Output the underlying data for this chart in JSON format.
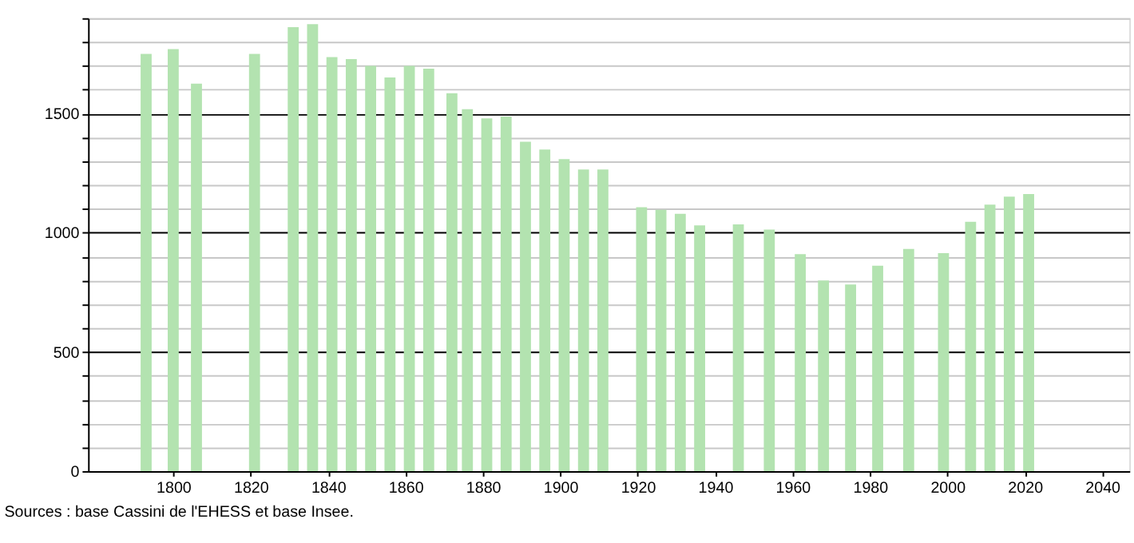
{
  "chart_data": {
    "type": "bar",
    "x": [
      1793,
      1800,
      1806,
      1821,
      1831,
      1836,
      1841,
      1846,
      1851,
      1856,
      1861,
      1866,
      1872,
      1876,
      1881,
      1886,
      1891,
      1896,
      1901,
      1906,
      1911,
      1921,
      1926,
      1931,
      1936,
      1946,
      1954,
      1962,
      1968,
      1975,
      1982,
      1990,
      1999,
      2006,
      2011,
      2016,
      2021
    ],
    "series": [
      {
        "color": "#b3e3b0",
        "values": [
          1750,
          1770,
          1625,
          1750,
          1862,
          1875,
          1737,
          1728,
          1700,
          1651,
          1700,
          1688,
          1585,
          1518,
          1480,
          1487,
          1382,
          1349,
          1309,
          1265,
          1265,
          1107,
          1096,
          1079,
          1031,
          1035,
          1013,
          910,
          800,
          783,
          862,
          932,
          914,
          1046,
          1118,
          1151,
          1162
        ]
      }
    ],
    "xlim": [
      1778,
      2047
    ],
    "xticks": [
      1800,
      1820,
      1840,
      1860,
      1880,
      1900,
      1920,
      1940,
      1960,
      1980,
      2000,
      2020,
      2040
    ],
    "ylim": [
      0,
      1900
    ],
    "yticks": [
      0,
      {
        "value": 100,
        "label": null
      },
      {
        "value": 200,
        "label": null
      },
      {
        "value": 300,
        "label": null
      },
      {
        "value": 400,
        "label": null
      },
      500,
      {
        "value": 600,
        "label": null
      },
      {
        "value": 700,
        "label": null
      },
      {
        "value": 800,
        "label": null
      },
      {
        "value": 900,
        "label": null
      },
      1000,
      {
        "value": 1100,
        "label": null
      },
      {
        "value": 1200,
        "label": null
      },
      {
        "value": 1300,
        "label": null
      },
      {
        "value": 1400,
        "label": null
      },
      1500,
      {
        "value": 1600,
        "label": null
      },
      {
        "value": 1700,
        "label": null
      },
      {
        "value": 1800,
        "label": null
      },
      {
        "value": 1900,
        "label": null
      }
    ],
    "grid": "y",
    "annotations": [
      "Sources : base Cassini de l'EHESS et base Insee."
    ]
  }
}
